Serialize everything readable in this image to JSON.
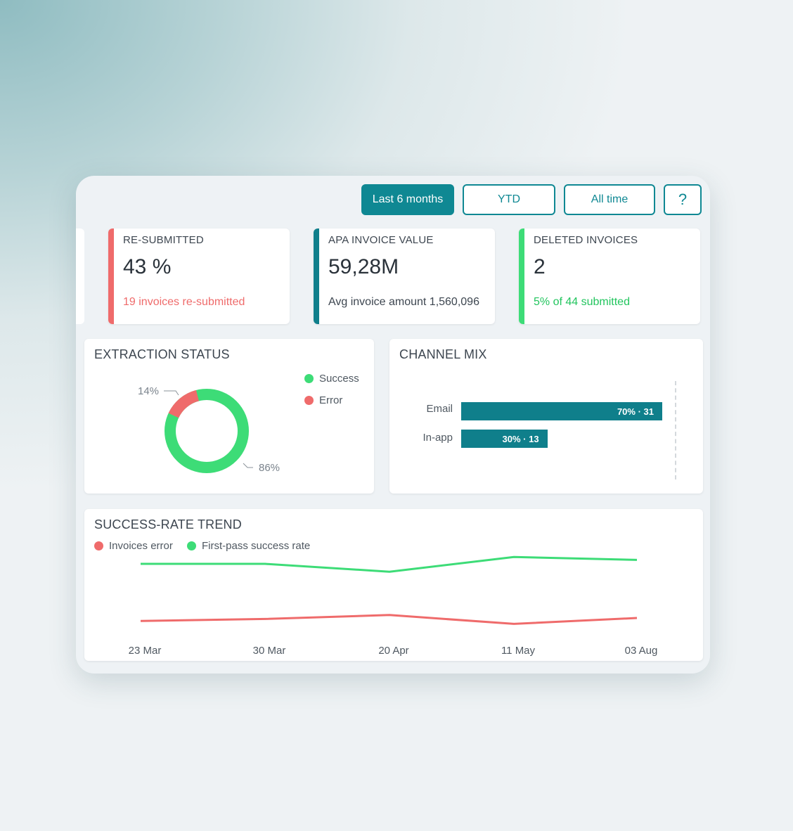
{
  "filters": {
    "last6": "Last 6 months",
    "ytd": "YTD",
    "alltime": "All time",
    "help": "?"
  },
  "kpis": [
    {
      "label": "RE-SUBMITTED",
      "value": "43 %",
      "sub": "19 invoices re-submitted",
      "color": "#ef6b6b"
    },
    {
      "label": "APA INVOICE VALUE",
      "value": "59,28M",
      "sub": "Avg invoice amount 1,560,096",
      "color": "#0f7f8b"
    },
    {
      "label": "DELETED INVOICES",
      "value": "2",
      "sub": "5% of 44 submitted",
      "color": "#3ddc77"
    }
  ],
  "extraction": {
    "title": "EXTRACTION STATUS",
    "legend_success": "Success",
    "legend_error": "Error",
    "error_pct_label": "14%",
    "success_pct_label": "86%",
    "error_pct": 14,
    "success_pct": 86
  },
  "channel": {
    "title": "CHANNEL MIX",
    "rows": [
      {
        "label": "Email",
        "bar_label": "70% · 31",
        "pct": 70
      },
      {
        "label": "In-app",
        "bar_label": "30% · 13",
        "pct": 30
      }
    ]
  },
  "trend": {
    "title": "SUCCESS-RATE TREND",
    "legend_error": "Invoices error",
    "legend_success": "First-pass success rate"
  },
  "chart_data": {
    "type": "line",
    "categories": [
      "23 Mar",
      "30 Mar",
      "20 Apr",
      "11 May",
      "03 Aug"
    ],
    "series": [
      {
        "name": "First-pass success rate",
        "values": [
          80,
          80,
          72,
          87,
          84
        ],
        "color": "#3ddc77"
      },
      {
        "name": "Invoices error",
        "values": [
          22,
          24,
          28,
          19,
          25
        ],
        "color": "#ef6b6b"
      }
    ],
    "ylim": [
      0,
      100
    ]
  },
  "colors": {
    "accent": "#0f8893",
    "success": "#3ddc77",
    "error": "#ef6b6b"
  }
}
